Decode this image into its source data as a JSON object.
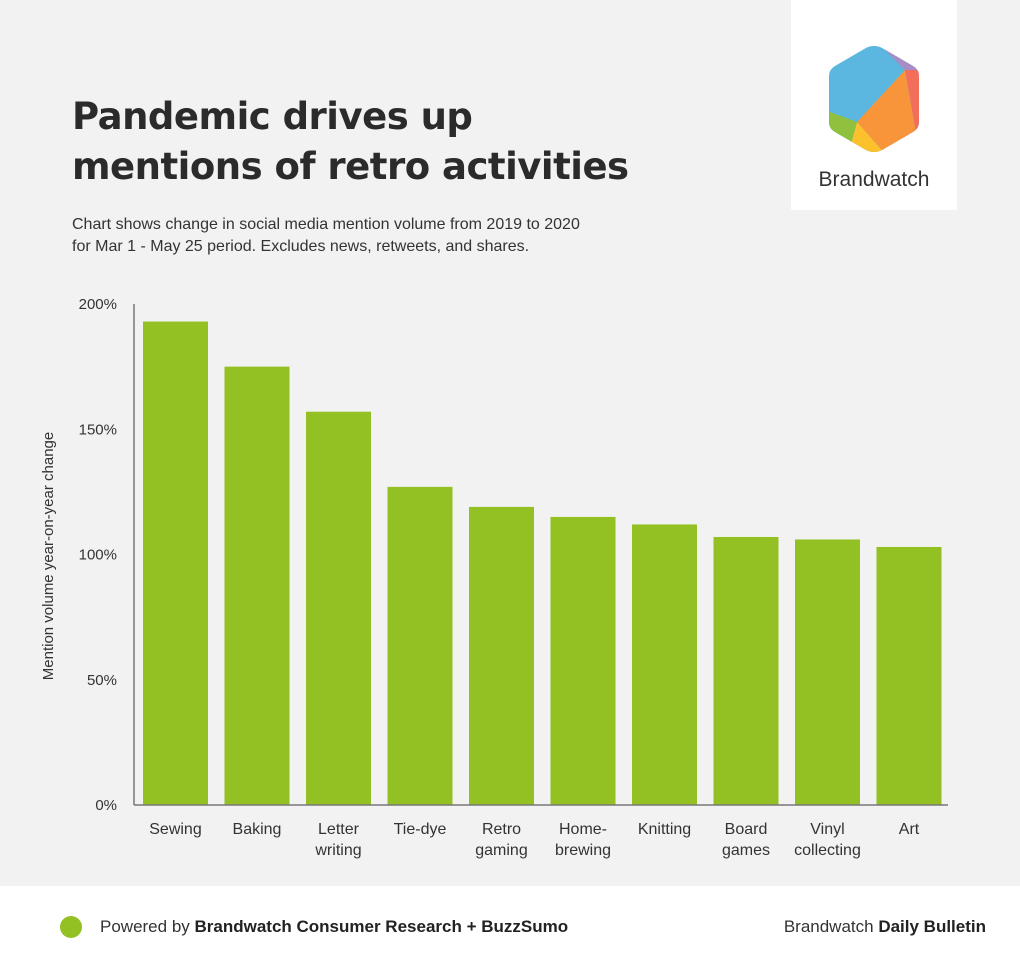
{
  "header": {
    "title_lines": [
      "Pandemic drives up",
      "mentions of retro activities"
    ],
    "subtitle_lines": [
      "Chart shows change in social media mention volume from 2019 to 2020",
      "for Mar 1 - May 25 period. Excludes news, retweets, and shares."
    ]
  },
  "logo": {
    "text": "Brandwatch",
    "icon": "brandwatch-hexagon-logo"
  },
  "colors": {
    "bar": "#93c023",
    "background": "#f2f2f2",
    "axis": "#666666"
  },
  "chart_data": {
    "type": "bar",
    "title": "Pandemic drives up mentions of retro activities",
    "ylabel": "Mention volume year-on-year change",
    "xlabel": "",
    "ylim": [
      0,
      200
    ],
    "yticks": [
      "0%",
      "50%",
      "100%",
      "150%",
      "200%"
    ],
    "categories": [
      [
        "Sewing"
      ],
      [
        "Baking"
      ],
      [
        "Letter",
        "writing"
      ],
      [
        "Tie-dye"
      ],
      [
        "Retro",
        "gaming"
      ],
      [
        "Home-",
        "brewing"
      ],
      [
        "Knitting"
      ],
      [
        "Board",
        "games"
      ],
      [
        "Vinyl",
        "collecting"
      ],
      [
        "Art"
      ]
    ],
    "values": [
      193,
      175,
      157,
      127,
      119,
      115,
      112,
      107,
      106,
      103
    ],
    "grid": false,
    "legend": "none"
  },
  "footer": {
    "powered_prefix": "Powered by ",
    "powered_bold": "Brandwatch Consumer Research + BuzzSumo",
    "bulletin_prefix": "Brandwatch ",
    "bulletin_bold": "Daily Bulletin"
  }
}
